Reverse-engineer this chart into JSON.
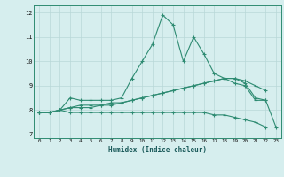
{
  "xlabel": "Humidex (Indice chaleur)",
  "x_values": [
    0,
    1,
    2,
    3,
    4,
    5,
    6,
    7,
    8,
    9,
    10,
    11,
    12,
    13,
    14,
    15,
    16,
    17,
    18,
    19,
    20,
    21,
    22,
    23
  ],
  "line1": [
    7.9,
    7.9,
    8.0,
    8.5,
    8.4,
    8.4,
    8.4,
    8.4,
    8.5,
    9.3,
    10.0,
    10.7,
    11.9,
    11.5,
    10.0,
    11.0,
    10.3,
    9.5,
    9.3,
    9.1,
    9.0,
    8.4,
    8.4,
    null
  ],
  "line2": [
    7.9,
    7.9,
    8.0,
    8.1,
    8.1,
    8.1,
    8.2,
    8.2,
    8.3,
    8.4,
    8.5,
    8.6,
    8.7,
    8.8,
    8.9,
    9.0,
    9.1,
    9.2,
    9.3,
    9.3,
    9.2,
    9.0,
    8.8,
    null
  ],
  "line3": [
    7.9,
    7.9,
    8.0,
    7.9,
    7.9,
    7.9,
    7.9,
    7.9,
    7.9,
    7.9,
    7.9,
    7.9,
    7.9,
    7.9,
    7.9,
    7.9,
    7.9,
    7.8,
    7.8,
    7.7,
    7.6,
    7.5,
    7.3,
    null
  ],
  "line4": [
    7.9,
    7.9,
    8.0,
    8.1,
    8.2,
    8.2,
    8.2,
    8.3,
    8.3,
    8.4,
    8.5,
    8.6,
    8.7,
    8.8,
    8.9,
    9.0,
    9.1,
    9.2,
    9.3,
    9.3,
    9.1,
    8.5,
    8.4,
    7.3
  ],
  "line_color": "#2e8b72",
  "bg_color": "#d6eeee",
  "grid_color": "#b8d8d8",
  "ylim": [
    6.85,
    12.3
  ],
  "xlim": [
    -0.5,
    23.5
  ],
  "yticks": [
    7,
    8,
    9,
    10,
    11,
    12
  ],
  "xticks": [
    0,
    1,
    2,
    3,
    4,
    5,
    6,
    7,
    8,
    9,
    10,
    11,
    12,
    13,
    14,
    15,
    16,
    17,
    18,
    19,
    20,
    21,
    22,
    23
  ]
}
